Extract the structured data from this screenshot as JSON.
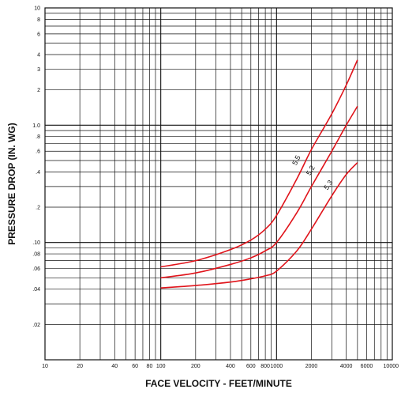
{
  "chart_data": {
    "type": "line",
    "xlabel": "FACE VELOCITY - FEET/MINUTE",
    "ylabel": "PRESSURE DROP (IN. WG)",
    "xscale": "log",
    "yscale": "log",
    "xlim": [
      10,
      10000
    ],
    "ylim": [
      0.01,
      10
    ],
    "grid": true,
    "x_ticks": [
      {
        "value": 10,
        "label": "10"
      },
      {
        "value": 20,
        "label": "20"
      },
      {
        "value": 40,
        "label": "40"
      },
      {
        "value": 60,
        "label": "60"
      },
      {
        "value": 80,
        "label": "80"
      },
      {
        "value": 100,
        "label": "100"
      },
      {
        "value": 200,
        "label": "200"
      },
      {
        "value": 400,
        "label": "400"
      },
      {
        "value": 600,
        "label": "600"
      },
      {
        "value": 800,
        "label": "800"
      },
      {
        "value": 1000,
        "label": "1000"
      },
      {
        "value": 2000,
        "label": "2000"
      },
      {
        "value": 4000,
        "label": "4000"
      },
      {
        "value": 6000,
        "label": "6000"
      },
      {
        "value": 10000,
        "label": "10000"
      }
    ],
    "y_ticks": [
      {
        "value": 10,
        "label": "10"
      },
      {
        "value": 8,
        "label": "8"
      },
      {
        "value": 6,
        "label": "6"
      },
      {
        "value": 4,
        "label": "4"
      },
      {
        "value": 3,
        "label": "3"
      },
      {
        "value": 2,
        "label": "2"
      },
      {
        "value": 1.0,
        "label": "1.0"
      },
      {
        "value": 0.8,
        "label": ".8"
      },
      {
        "value": 0.6,
        "label": ".6"
      },
      {
        "value": 0.4,
        "label": ".4"
      },
      {
        "value": 0.2,
        "label": ".2"
      },
      {
        "value": 0.1,
        "label": ".10"
      },
      {
        "value": 0.08,
        "label": ".08"
      },
      {
        "value": 0.06,
        "label": ".06"
      },
      {
        "value": 0.04,
        "label": ".04"
      },
      {
        "value": 0.02,
        "label": ".02"
      }
    ],
    "series_color": "#e0141b",
    "series": [
      {
        "name": "5.5",
        "x": [
          100,
          200,
          400,
          600,
          800,
          1000,
          1500,
          2000,
          3000,
          4000,
          5000
        ],
        "y": [
          0.062,
          0.07,
          0.087,
          0.105,
          0.13,
          0.17,
          0.35,
          0.62,
          1.25,
          2.2,
          3.6
        ]
      },
      {
        "name": "5.2",
        "x": [
          100,
          200,
          400,
          600,
          800,
          1000,
          1500,
          2000,
          3000,
          4000,
          5000
        ],
        "y": [
          0.05,
          0.055,
          0.065,
          0.074,
          0.085,
          0.1,
          0.18,
          0.3,
          0.6,
          1.0,
          1.45
        ]
      },
      {
        "name": "5.3",
        "x": [
          100,
          200,
          400,
          600,
          800,
          1000,
          1500,
          2000,
          3000,
          4000,
          5000
        ],
        "y": [
          0.041,
          0.043,
          0.046,
          0.049,
          0.052,
          0.057,
          0.085,
          0.13,
          0.25,
          0.38,
          0.48
        ]
      }
    ]
  }
}
